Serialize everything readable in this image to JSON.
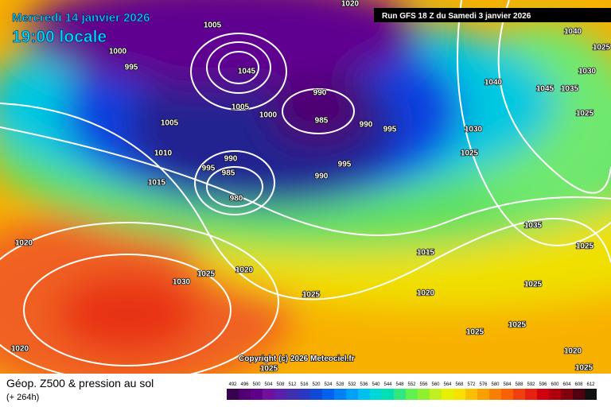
{
  "header": {
    "date": "Mercredi 14 janvier 2026",
    "time": "19:00 locale",
    "run": "Run GFS 18 Z du Samedi 3 janvier 2026"
  },
  "copyright": "Copyright (c) 2026 Meteociel.fr",
  "footer": {
    "title": "Géop. Z500 & pression au sol",
    "lead": "(+ 264h)"
  },
  "scale": {
    "values": [
      492,
      496,
      500,
      504,
      508,
      512,
      516,
      520,
      524,
      528,
      532,
      536,
      540,
      544,
      548,
      552,
      556,
      560,
      564,
      568,
      572,
      576,
      580,
      584,
      588,
      592,
      596,
      600,
      604,
      608,
      612
    ],
    "colors": [
      "#3a0050",
      "#500070",
      "#600088",
      "#70109c",
      "#5820a8",
      "#4030b0",
      "#2838c0",
      "#1048d8",
      "#0060f0",
      "#0080f8",
      "#00a0f8",
      "#00c0f0",
      "#00d8d8",
      "#00e0b0",
      "#30e880",
      "#60f050",
      "#90f030",
      "#c0f020",
      "#e8f000",
      "#f8e000",
      "#f8c000",
      "#f8a000",
      "#f88000",
      "#f86000",
      "#f04010",
      "#e82010",
      "#d00010",
      "#b00010",
      "#800010",
      "#500010",
      "#101010"
    ]
  },
  "isobars": [
    1000,
    995,
    1005,
    1020,
    1045,
    1005,
    1000,
    990,
    985,
    990,
    995,
    1005,
    1010,
    995,
    990,
    985,
    980,
    990,
    995,
    1015,
    1020,
    1030,
    1025,
    1020,
    1025,
    1015,
    1020,
    1025,
    1025,
    1020,
    1025,
    1025,
    1020,
    1040,
    1025,
    1030,
    1040,
    1045,
    1035,
    1025,
    1030,
    1025,
    1035,
    1025,
    1025
  ]
}
